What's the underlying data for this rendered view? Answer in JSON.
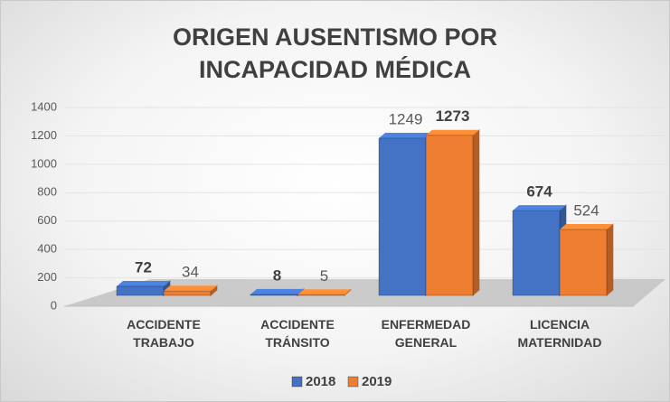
{
  "chart_data": {
    "type": "bar3d",
    "title": "ORIGEN AUSENTISMO POR INCAPACIDAD MÉDICA",
    "categories": [
      "ACCIDENTE TRABAJO",
      "ACCIDENTE TRÁNSITO",
      "ENFERMEDAD GENERAL",
      "LICENCIA MATERNIDAD"
    ],
    "series": [
      {
        "name": "2018",
        "color": "#4472c4",
        "values": [
          72,
          8,
          1249,
          674
        ],
        "bold_labels": [
          true,
          true,
          false,
          true
        ]
      },
      {
        "name": "2019",
        "color": "#ed7d31",
        "values": [
          34,
          5,
          1273,
          524
        ],
        "bold_labels": [
          false,
          false,
          true,
          false
        ]
      }
    ],
    "ylim": [
      0,
      1400
    ],
    "yticks": [
      0,
      200,
      400,
      600,
      800,
      1000,
      1200,
      1400
    ],
    "grid": true,
    "legend": "bottom"
  }
}
